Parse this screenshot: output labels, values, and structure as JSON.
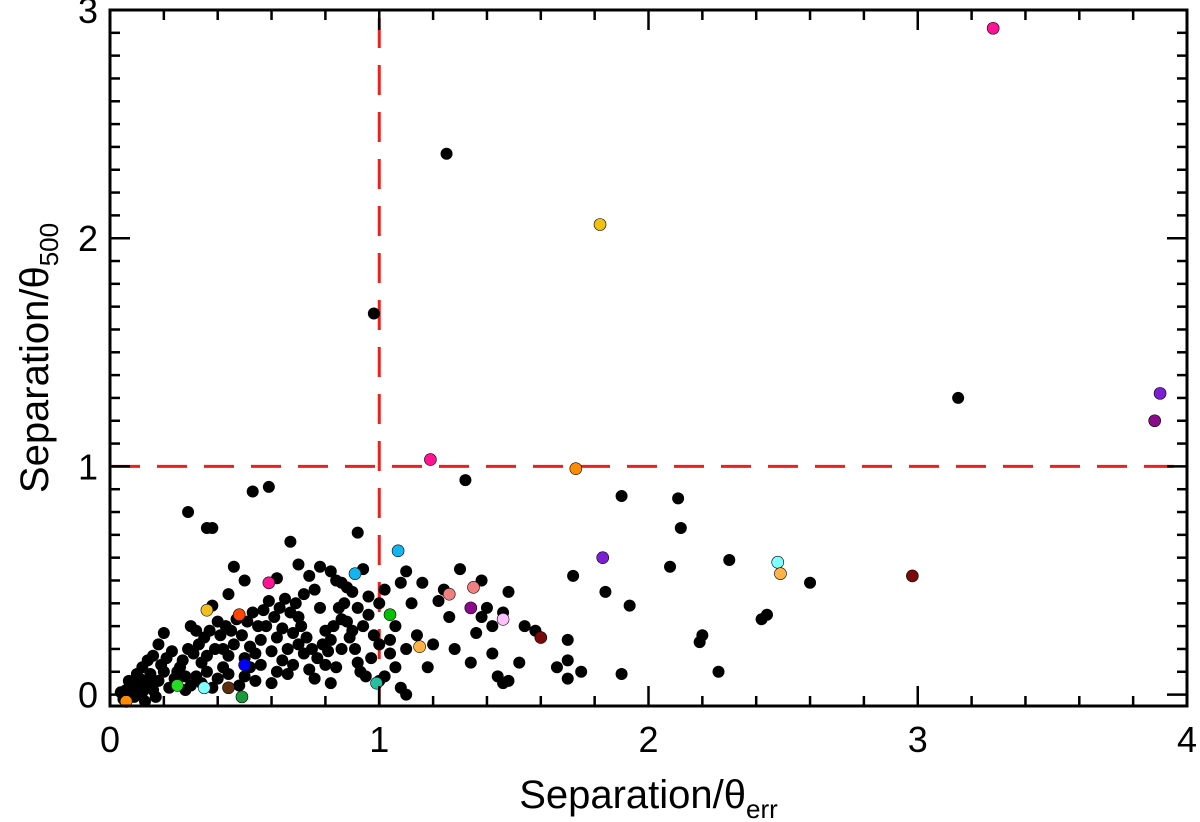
{
  "chart_data": {
    "type": "scatter",
    "title": "",
    "xlabel": {
      "main": "Separation/θ",
      "sub": "err"
    },
    "ylabel": {
      "main": "Separation/θ",
      "sub": "500"
    },
    "xlim": [
      0,
      4
    ],
    "ylim": [
      -0.05,
      3
    ],
    "xticks": [
      0,
      1,
      2,
      3,
      4
    ],
    "yticks": [
      0,
      1,
      2,
      3
    ],
    "xtick_labels": [
      "0",
      "1",
      "2",
      "3",
      "4"
    ],
    "ytick_labels": [
      "0",
      "1",
      "2",
      "3"
    ],
    "x_minor_step": 0.2,
    "y_minor_step": 0.1,
    "reference_lines": [
      {
        "orientation": "vertical",
        "value": 1,
        "color": "#e8231f",
        "style": "dashed"
      },
      {
        "orientation": "horizontal",
        "value": 1,
        "color": "#e8231f",
        "style": "dashed"
      }
    ],
    "series": [
      {
        "color": "#000000",
        "points": [
          [
            1.25,
            2.37
          ],
          [
            0.98,
            1.67
          ],
          [
            3.15,
            1.3
          ],
          [
            1.32,
            0.94
          ],
          [
            0.53,
            0.89
          ],
          [
            0.59,
            0.91
          ],
          [
            1.9,
            0.87
          ],
          [
            2.11,
            0.86
          ],
          [
            2.12,
            0.73
          ],
          [
            0.29,
            0.8
          ],
          [
            0.36,
            0.73
          ],
          [
            0.38,
            0.73
          ],
          [
            0.67,
            0.67
          ],
          [
            0.92,
            0.71
          ],
          [
            1.72,
            0.52
          ],
          [
            1.84,
            0.45
          ],
          [
            2.08,
            0.56
          ],
          [
            2.3,
            0.59
          ],
          [
            2.6,
            0.49
          ],
          [
            1.93,
            0.39
          ],
          [
            2.42,
            0.33
          ],
          [
            2.44,
            0.35
          ],
          [
            2.2,
            0.26
          ],
          [
            2.19,
            0.23
          ],
          [
            2.26,
            0.1
          ],
          [
            1.9,
            0.09
          ],
          [
            1.7,
            0.24
          ],
          [
            1.7,
            0.15
          ],
          [
            1.7,
            0.07
          ],
          [
            1.75,
            0.1
          ],
          [
            1.66,
            0.12
          ],
          [
            1.58,
            0.28
          ],
          [
            1.54,
            0.3
          ],
          [
            1.48,
            0.45
          ],
          [
            1.52,
            0.14
          ],
          [
            1.48,
            0.06
          ],
          [
            1.46,
            0.05
          ],
          [
            1.44,
            0.08
          ],
          [
            1.42,
            0.18
          ],
          [
            1.38,
            0.34
          ],
          [
            1.42,
            0.3
          ],
          [
            1.36,
            0.27
          ],
          [
            1.3,
            0.55
          ],
          [
            1.38,
            0.5
          ],
          [
            1.4,
            0.38
          ],
          [
            1.46,
            0.36
          ],
          [
            1.34,
            0.14
          ],
          [
            1.28,
            0.2
          ],
          [
            1.22,
            0.41
          ],
          [
            1.16,
            0.49
          ],
          [
            1.1,
            0.54
          ],
          [
            1.08,
            0.49
          ],
          [
            1.12,
            0.4
          ],
          [
            1.06,
            0.3
          ],
          [
            1.02,
            0.46
          ],
          [
            1.0,
            0.4
          ],
          [
            0.96,
            0.43
          ],
          [
            0.94,
            0.55
          ],
          [
            0.9,
            0.45
          ],
          [
            0.88,
            0.32
          ],
          [
            1.0,
            0.22
          ],
          [
            1.04,
            0.18
          ],
          [
            1.06,
            0.12
          ],
          [
            1.02,
            0.08
          ],
          [
            1.0,
            0.06
          ],
          [
            1.08,
            0.03
          ],
          [
            1.1,
            0.0
          ],
          [
            0.98,
            0.26
          ],
          [
            0.92,
            0.14
          ],
          [
            0.86,
            0.2
          ],
          [
            0.84,
            0.12
          ],
          [
            0.82,
            0.05
          ],
          [
            0.8,
            0.28
          ],
          [
            0.78,
            0.38
          ],
          [
            0.76,
            0.46
          ],
          [
            0.74,
            0.52
          ],
          [
            0.72,
            0.44
          ],
          [
            0.7,
            0.34
          ],
          [
            0.68,
            0.27
          ],
          [
            0.66,
            0.2
          ],
          [
            0.64,
            0.15
          ],
          [
            0.62,
            0.1
          ],
          [
            0.6,
            0.05
          ],
          [
            0.58,
            0.3
          ],
          [
            0.56,
            0.24
          ],
          [
            0.54,
            0.18
          ],
          [
            0.52,
            0.12
          ],
          [
            0.5,
            0.08
          ],
          [
            0.48,
            0.04
          ],
          [
            0.46,
            0.22
          ],
          [
            0.44,
            0.17
          ],
          [
            0.42,
            0.12
          ],
          [
            0.4,
            0.07
          ],
          [
            0.38,
            0.03
          ],
          [
            0.36,
            0.1
          ],
          [
            0.34,
            0.14
          ],
          [
            0.32,
            0.08
          ],
          [
            0.3,
            0.04
          ],
          [
            0.28,
            0.02
          ],
          [
            0.26,
            0.12
          ],
          [
            0.24,
            0.07
          ],
          [
            0.22,
            0.03
          ],
          [
            0.2,
            0.1
          ],
          [
            0.18,
            0.06
          ],
          [
            0.16,
            0.02
          ],
          [
            0.14,
            0.05
          ],
          [
            0.12,
            0.01
          ],
          [
            0.1,
            0.04
          ],
          [
            0.08,
            0.0
          ],
          [
            0.06,
            0.02
          ],
          [
            0.05,
            -0.02
          ],
          [
            0.09,
            -0.01
          ],
          [
            0.11,
            0.07
          ],
          [
            0.13,
            -0.03
          ],
          [
            0.15,
            0.09
          ],
          [
            0.17,
            -0.01
          ],
          [
            0.19,
            0.13
          ],
          [
            0.21,
            0.16
          ],
          [
            0.23,
            0.19
          ],
          [
            0.25,
            0.1
          ],
          [
            0.27,
            0.15
          ],
          [
            0.29,
            0.2
          ],
          [
            0.31,
            0.18
          ],
          [
            0.33,
            0.22
          ],
          [
            0.35,
            0.25
          ],
          [
            0.37,
            0.28
          ],
          [
            0.39,
            0.2
          ],
          [
            0.41,
            0.26
          ],
          [
            0.43,
            0.3
          ],
          [
            0.45,
            0.28
          ],
          [
            0.47,
            0.33
          ],
          [
            0.49,
            0.26
          ],
          [
            0.51,
            0.32
          ],
          [
            0.53,
            0.36
          ],
          [
            0.55,
            0.3
          ],
          [
            0.57,
            0.37
          ],
          [
            0.59,
            0.41
          ],
          [
            0.61,
            0.34
          ],
          [
            0.63,
            0.38
          ],
          [
            0.65,
            0.42
          ],
          [
            0.67,
            0.36
          ],
          [
            0.69,
            0.4
          ],
          [
            0.71,
            0.3
          ],
          [
            0.73,
            0.25
          ],
          [
            0.75,
            0.2
          ],
          [
            0.77,
            0.16
          ],
          [
            0.79,
            0.22
          ],
          [
            0.81,
            0.19
          ],
          [
            0.83,
            0.3
          ],
          [
            0.85,
            0.38
          ],
          [
            0.87,
            0.4
          ],
          [
            0.89,
            0.25
          ],
          [
            0.91,
            0.2
          ],
          [
            0.93,
            0.1
          ],
          [
            0.95,
            0.08
          ],
          [
            0.97,
            0.16
          ],
          [
            0.46,
            0.56
          ],
          [
            0.5,
            0.5
          ],
          [
            0.62,
            0.51
          ],
          [
            0.7,
            0.57
          ],
          [
            0.78,
            0.56
          ],
          [
            0.82,
            0.54
          ],
          [
            0.84,
            0.5
          ],
          [
            0.86,
            0.49
          ],
          [
            0.88,
            0.47
          ],
          [
            0.92,
            0.38
          ],
          [
            1.14,
            0.26
          ],
          [
            1.18,
            0.12
          ],
          [
            1.2,
            0.22
          ],
          [
            1.24,
            0.46
          ],
          [
            1.26,
            0.34
          ],
          [
            0.44,
            0.44
          ],
          [
            0.4,
            0.32
          ],
          [
            0.38,
            0.39
          ],
          [
            0.32,
            0.28
          ],
          [
            0.3,
            0.3
          ],
          [
            0.2,
            0.27
          ],
          [
            0.18,
            0.22
          ],
          [
            0.16,
            0.17
          ],
          [
            0.14,
            0.15
          ],
          [
            0.12,
            0.12
          ],
          [
            0.1,
            0.09
          ],
          [
            0.07,
            0.06
          ],
          [
            0.04,
            0.01
          ],
          [
            0.28,
            0.08
          ],
          [
            0.34,
            0.05
          ],
          [
            0.36,
            0.17
          ],
          [
            0.42,
            0.2
          ],
          [
            0.44,
            0.09
          ],
          [
            0.5,
            0.16
          ],
          [
            0.52,
            0.21
          ],
          [
            0.54,
            0.06
          ],
          [
            0.56,
            0.13
          ],
          [
            0.6,
            0.19
          ],
          [
            0.62,
            0.25
          ],
          [
            0.64,
            0.29
          ],
          [
            0.66,
            0.09
          ],
          [
            0.68,
            0.13
          ],
          [
            0.7,
            0.22
          ],
          [
            0.72,
            0.18
          ],
          [
            0.74,
            0.11
          ],
          [
            0.76,
            0.07
          ],
          [
            0.8,
            0.13
          ],
          [
            0.82,
            0.24
          ],
          [
            0.86,
            0.33
          ],
          [
            0.9,
            0.28
          ],
          [
            0.94,
            0.3
          ],
          [
            0.96,
            0.35
          ],
          [
            1.04,
            0.24
          ],
          [
            1.1,
            0.2
          ]
        ]
      },
      {
        "color": "#ff1493",
        "points": [
          [
            3.28,
            2.92
          ],
          [
            1.19,
            1.03
          ],
          [
            0.59,
            0.49
          ]
        ]
      },
      {
        "color": "#f2c10f",
        "points": [
          [
            1.82,
            2.06
          ]
        ]
      },
      {
        "color": "#7a1fd1",
        "points": [
          [
            3.9,
            1.32
          ],
          [
            1.83,
            0.6
          ]
        ]
      },
      {
        "color": "#8b0a8b",
        "points": [
          [
            3.88,
            1.2
          ],
          [
            1.34,
            0.38
          ]
        ]
      },
      {
        "color": "#ff8c00",
        "points": [
          [
            1.73,
            0.99
          ],
          [
            0.06,
            -0.03
          ]
        ]
      },
      {
        "color": "#12b5f0",
        "points": [
          [
            1.07,
            0.63
          ],
          [
            0.91,
            0.53
          ]
        ]
      },
      {
        "color": "#7fffff",
        "points": [
          [
            2.48,
            0.58
          ],
          [
            0.35,
            0.03
          ]
        ]
      },
      {
        "color": "#ffb347",
        "points": [
          [
            2.49,
            0.53
          ],
          [
            1.15,
            0.21
          ]
        ]
      },
      {
        "color": "#f0c020",
        "points": [
          [
            0.36,
            0.37
          ]
        ]
      },
      {
        "color": "#7a0a0a",
        "points": [
          [
            2.98,
            0.52
          ],
          [
            1.6,
            0.25
          ]
        ]
      },
      {
        "color": "#f08080",
        "points": [
          [
            1.26,
            0.44
          ],
          [
            1.35,
            0.47
          ]
        ]
      },
      {
        "color": "#ffc0ff",
        "points": [
          [
            1.46,
            0.33
          ]
        ]
      },
      {
        "color": "#ff4500",
        "points": [
          [
            0.48,
            0.35
          ]
        ]
      },
      {
        "color": "#00c000",
        "points": [
          [
            1.04,
            0.35
          ]
        ]
      },
      {
        "color": "#22dd22",
        "points": [
          [
            0.25,
            0.04
          ]
        ]
      },
      {
        "color": "#0000ff",
        "points": [
          [
            0.5,
            0.13
          ]
        ]
      },
      {
        "color": "#5a2d0c",
        "points": [
          [
            0.44,
            0.03
          ]
        ]
      },
      {
        "color": "#1a9a3a",
        "points": [
          [
            0.49,
            -0.01
          ]
        ]
      },
      {
        "color": "#20c0a0",
        "points": [
          [
            0.99,
            0.05
          ]
        ]
      }
    ]
  }
}
